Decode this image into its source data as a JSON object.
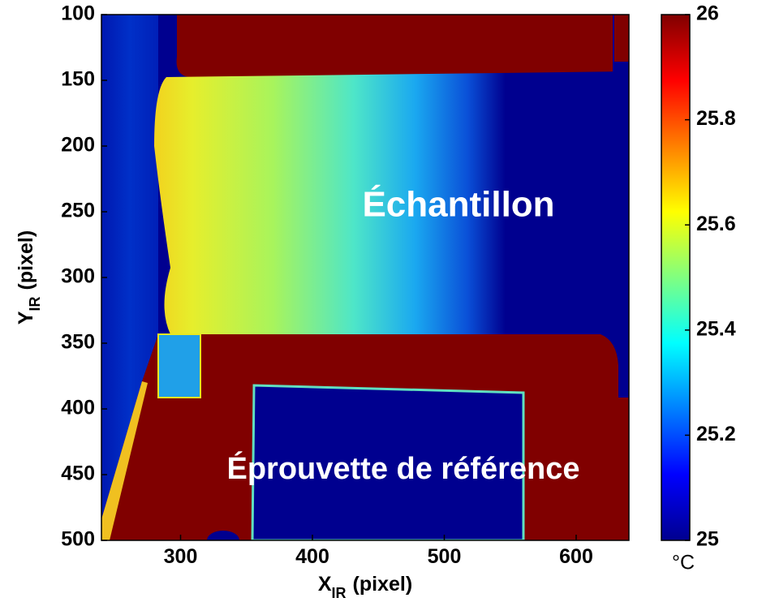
{
  "chart_data": {
    "type": "heatmap",
    "xlabel": {
      "main": "X",
      "sub": "IR",
      "rest": "(pixel)"
    },
    "ylabel": {
      "main": "Y",
      "sub": "IR",
      "rest": "(pixel)"
    },
    "xlim": [
      240,
      640
    ],
    "xticks": [
      300,
      400,
      500,
      600
    ],
    "ylim": [
      100,
      500
    ],
    "yticks": [
      100,
      150,
      200,
      250,
      300,
      350,
      400,
      450,
      500
    ],
    "y_reversed": true,
    "colormap": "jet",
    "clim": [
      25,
      26
    ],
    "cticks": [
      25,
      25.2,
      25.4,
      25.6,
      25.8,
      26
    ],
    "colorbar_label": "°C",
    "annotations": [
      "Échantillon",
      "Éprouvette de référence"
    ]
  }
}
